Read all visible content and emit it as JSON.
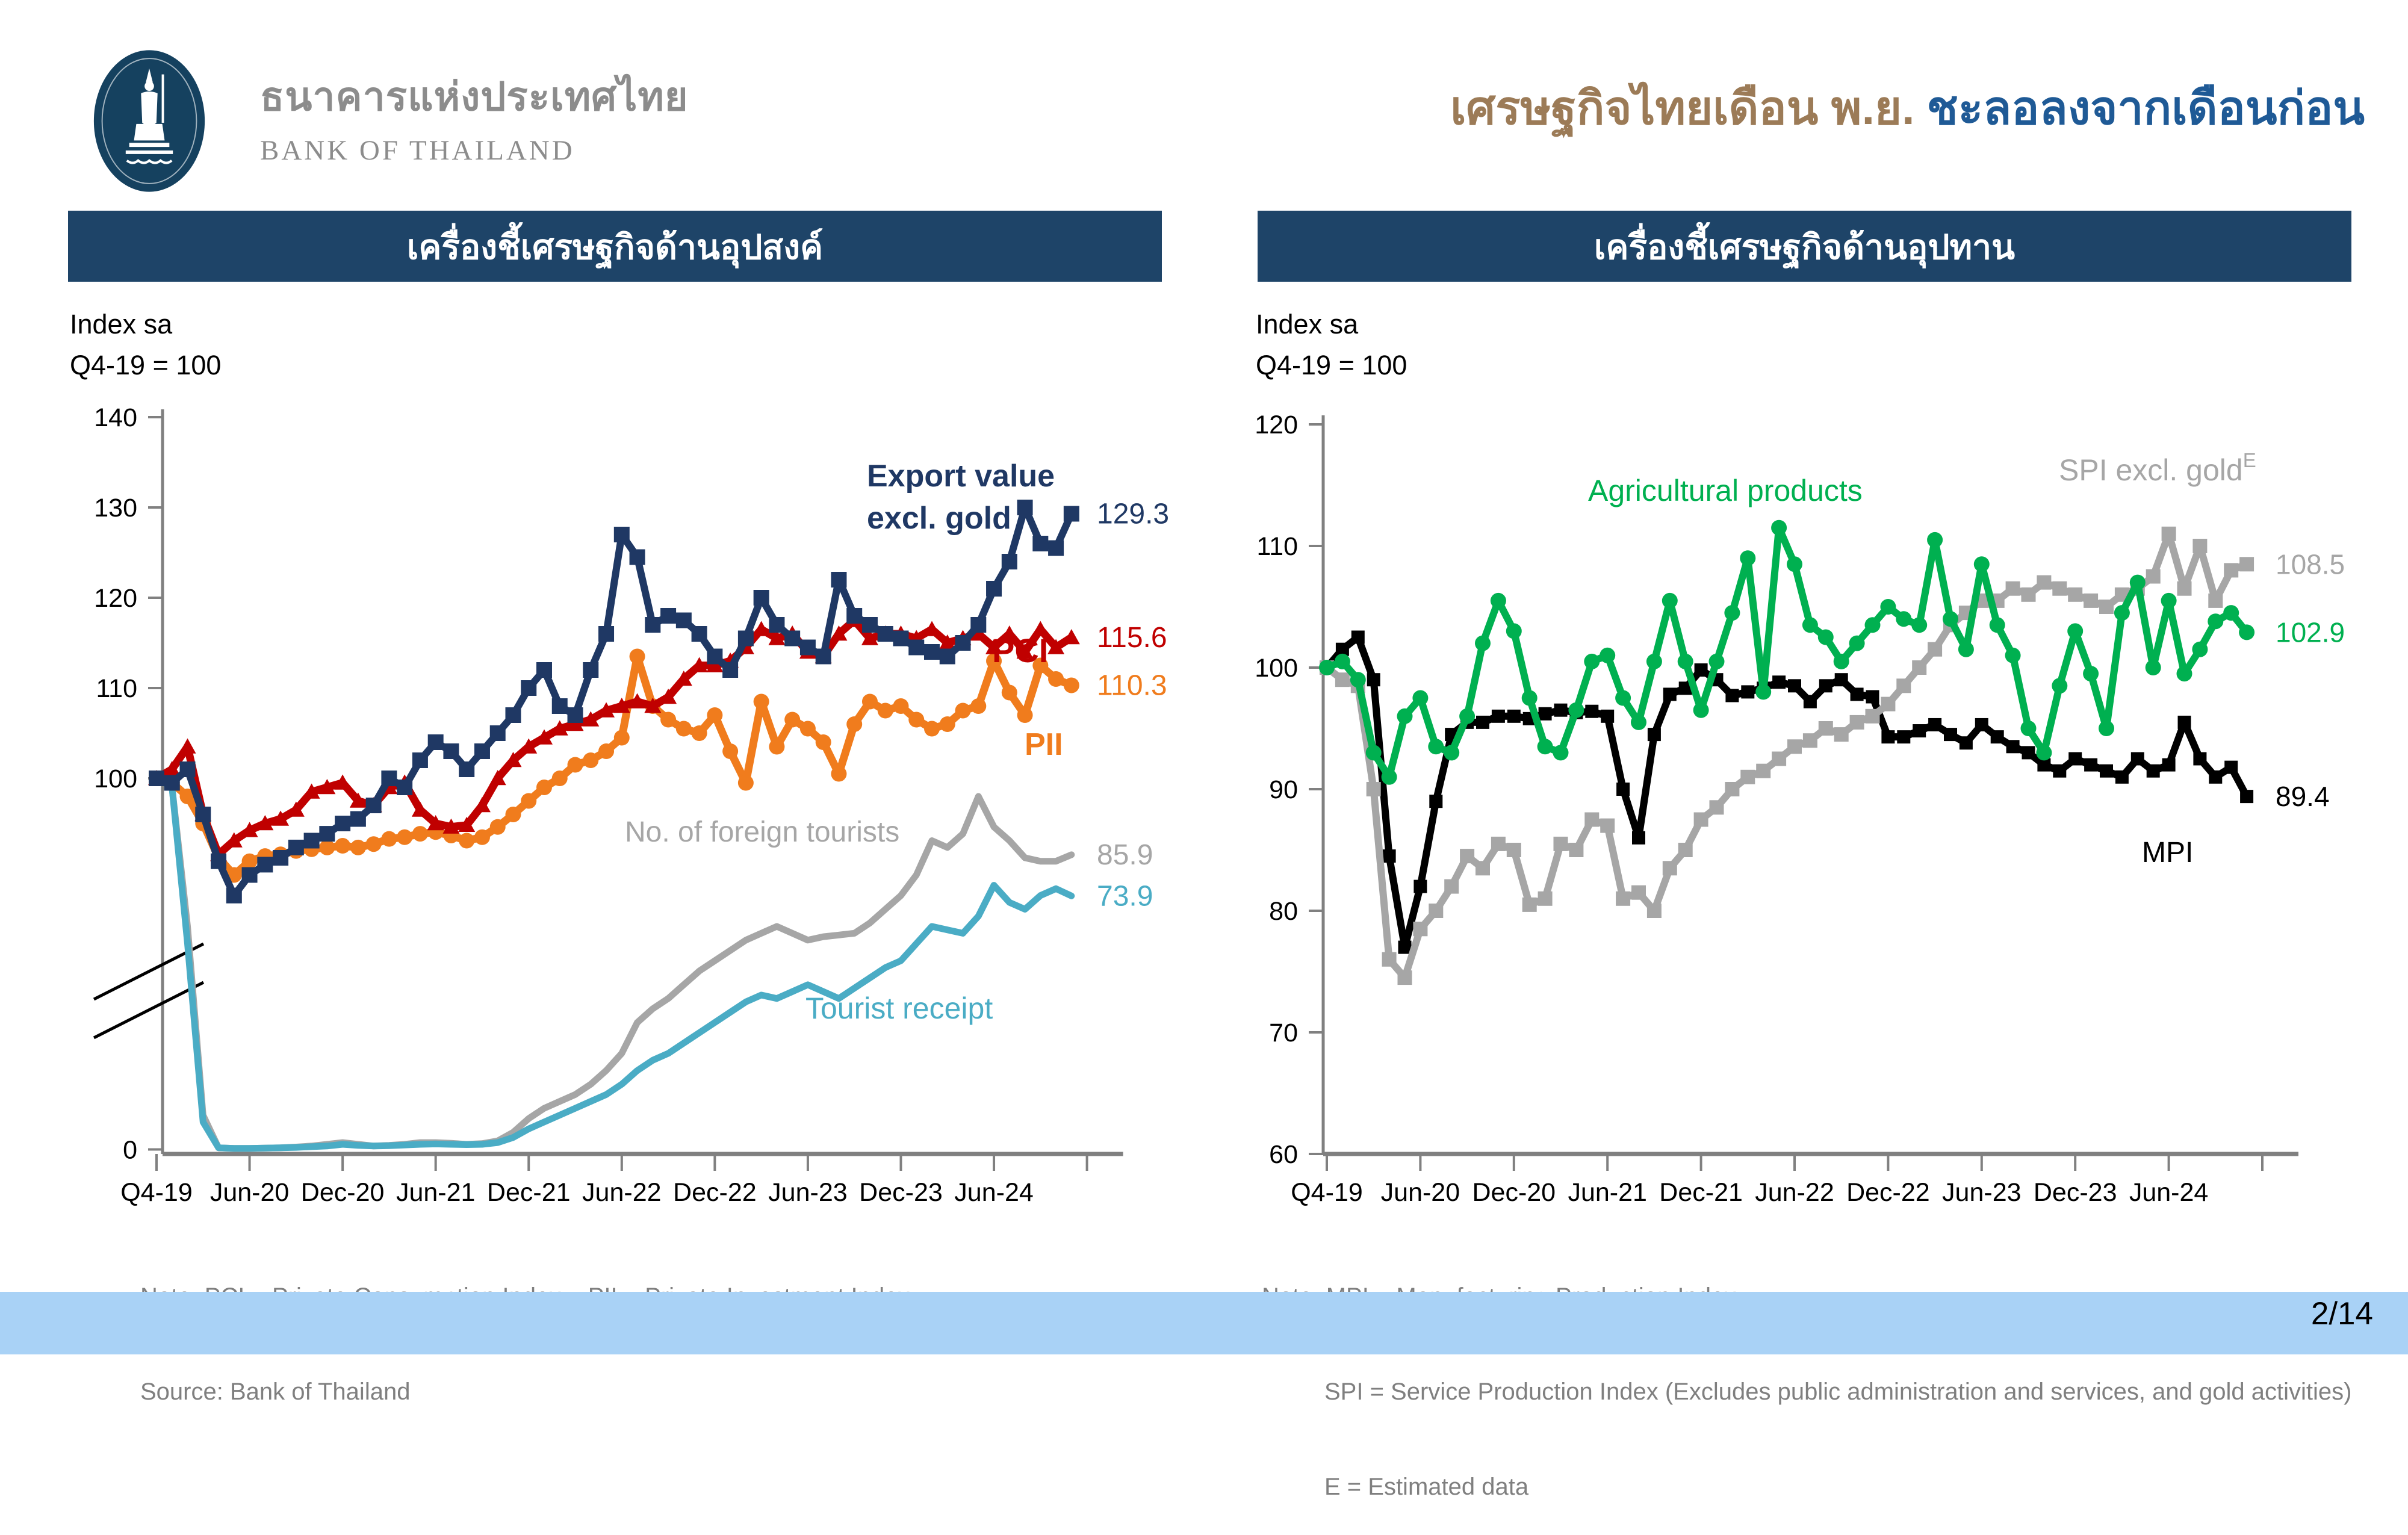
{
  "header": {
    "bank_name_thai": "ธนาคารแห่งประเทศไทย",
    "bank_name_en": "BANK OF THAILAND",
    "title_part1": "เศรษฐกิจไทยเดือน พ.ย.",
    "title_part2": "ชะลอลงจากเดือนก่อน"
  },
  "panels": {
    "left": {
      "header": "เครื่องชี้เศรษฐกิจด้านอุปสงค์",
      "index_label": "Index sa",
      "base_label": "Q4-19 = 100",
      "note_lines": [
        "Note: PCI = Private Consumption Index    PII = Private Investment Index",
        "Source: Bank of Thailand"
      ]
    },
    "right": {
      "header": "เครื่องชี้เศรษฐกิจด้านอุปทาน",
      "index_label": "Index sa",
      "base_label": "Q4-19 = 100",
      "note_lines": [
        "Note: MPI = Manufacturing Production Index",
        "SPI = Service Production Index (Excludes public administration and services, and gold activities)",
        "E = Estimated data"
      ]
    }
  },
  "footer": {
    "page_number": "2/14"
  },
  "chart_data": [
    {
      "type": "line",
      "title": "เครื่องชี้เศรษฐกิจด้านอุปสงค์",
      "ylabel": "Index sa, Q4-19 = 100",
      "x_tick_labels": [
        "Q4-19",
        "Jun-20",
        "Dec-20",
        "Jun-21",
        "Dec-21",
        "Jun-22",
        "Dec-22",
        "Jun-23",
        "Dec-23",
        "Jun-24"
      ],
      "y_ticks": [
        140,
        130,
        120,
        110,
        100,
        0
      ],
      "ylim": [
        0,
        140
      ],
      "y_axis_break": true,
      "x_monthly_points": 60,
      "legend_position": "inline-annotations",
      "series": [
        {
          "name": "Export value excl. gold",
          "name_lines": [
            "Export value",
            "excl. gold"
          ],
          "color": "#1f3864",
          "marker": "square",
          "end_label": "129.3",
          "values": [
            100,
            99.5,
            101,
            96,
            84,
            74,
            80,
            83,
            85,
            88,
            90,
            92,
            95,
            95.5,
            97,
            100,
            99,
            102,
            104,
            103,
            101,
            103,
            105,
            107,
            110,
            112,
            108,
            107,
            112,
            116,
            127,
            124.5,
            117,
            118,
            117.5,
            116,
            113.5,
            112,
            115.5,
            120,
            117,
            115.5,
            114.5,
            113.5,
            122,
            118,
            117,
            116,
            115.5,
            114.5,
            114,
            113.5,
            115,
            117,
            121,
            124,
            130,
            126,
            125.5,
            129.3
          ]
        },
        {
          "name": "PCI",
          "color": "#c00000",
          "marker": "triangle",
          "end_label": "115.6",
          "values": [
            100,
            101,
            103.5,
            96,
            86,
            90,
            93,
            95,
            95.5,
            96.5,
            98.5,
            99,
            99.5,
            97.5,
            97,
            99,
            99.5,
            96.5,
            95,
            94,
            94.5,
            97,
            100,
            102,
            103.5,
            104.5,
            105.5,
            106,
            106.5,
            107.5,
            108,
            108.5,
            108,
            109,
            111,
            112.5,
            112.5,
            113,
            114.5,
            116.5,
            115.5,
            116,
            114,
            113.5,
            116,
            117.5,
            115.5,
            116,
            116,
            115.5,
            116.5,
            115,
            115.5,
            116,
            114.5,
            116,
            114,
            116.5,
            114.5,
            115.6
          ]
        },
        {
          "name": "PII",
          "color": "#f07c1d",
          "marker": "circle",
          "end_label": "110.3",
          "values": [
            100,
            99.5,
            98,
            95,
            85,
            80,
            84,
            85.5,
            86,
            87,
            87.5,
            88,
            88.5,
            88,
            89,
            90.5,
            91,
            92,
            92.5,
            91.5,
            90,
            91,
            94,
            96,
            97.5,
            99,
            100,
            101.5,
            102,
            103,
            104.5,
            113.5,
            108,
            106.5,
            105.5,
            105,
            107,
            103,
            99.5,
            108.5,
            103.5,
            106.5,
            105.5,
            104,
            100.5,
            106,
            108.5,
            107.5,
            108,
            106.5,
            105.5,
            106,
            107.5,
            108,
            113,
            109.5,
            107,
            112.5,
            111,
            110.3
          ]
        },
        {
          "name": "No. of foreign tourists",
          "color": "#a6a6a6",
          "marker": "none",
          "end_label": "85.9",
          "values": [
            100,
            99,
            65,
            10,
            0.5,
            0.3,
            0.3,
            0.4,
            0.5,
            0.7,
            1,
            1.5,
            2,
            1.5,
            1,
            1.2,
            1.5,
            2,
            2,
            1.8,
            1.5,
            1.7,
            2.5,
            5,
            9,
            12,
            14,
            16,
            19,
            23,
            28,
            37,
            41,
            44,
            48,
            52,
            55,
            58,
            61,
            63,
            65,
            63,
            61,
            62,
            62.5,
            63,
            66,
            70,
            74,
            80,
            90,
            88,
            92,
            98,
            94,
            90,
            85,
            84,
            84,
            85.9
          ]
        },
        {
          "name": "Tourist receipt",
          "color": "#4aacc5",
          "marker": "none",
          "end_label": "73.9",
          "values": [
            100,
            99,
            60,
            8,
            0.5,
            0.3,
            0.3,
            0.4,
            0.5,
            0.6,
            0.8,
            1,
            1.5,
            1.2,
            1,
            1.1,
            1.3,
            1.5,
            1.6,
            1.5,
            1.4,
            1.5,
            2,
            3.5,
            6,
            8,
            10,
            12,
            14,
            16,
            19,
            23,
            26,
            28,
            31,
            34,
            37,
            40,
            43,
            45,
            44,
            46,
            48,
            46,
            44,
            47,
            50,
            53,
            55,
            60,
            65,
            64,
            63,
            68,
            77,
            72,
            70,
            74,
            76,
            73.9
          ]
        }
      ]
    },
    {
      "type": "line",
      "title": "เครื่องชี้เศรษฐกิจด้านอุปทาน",
      "ylabel": "Index sa, Q4-19 = 100",
      "x_tick_labels": [
        "Q4-19",
        "Jun-20",
        "Dec-20",
        "Jun-21",
        "Dec-21",
        "Jun-22",
        "Dec-22",
        "Jun-23",
        "Dec-23",
        "Jun-24"
      ],
      "y_ticks": [
        120,
        110,
        100,
        90,
        80,
        70,
        60
      ],
      "ylim": [
        60,
        120
      ],
      "y_axis_break": false,
      "x_monthly_points": 60,
      "legend_position": "inline-annotations",
      "series": [
        {
          "name": "MPI",
          "color": "#000000",
          "marker": "square",
          "end_label": "89.4",
          "values": [
            100,
            101.5,
            102.5,
            99,
            84.5,
            77,
            82,
            89,
            94.5,
            95.5,
            95.5,
            96,
            96,
            95.8,
            96.2,
            96.5,
            96.3,
            96.4,
            96,
            90,
            86,
            94.5,
            97.8,
            98.3,
            99.8,
            99,
            97.7,
            98,
            98.3,
            98.8,
            98.5,
            97.2,
            98.5,
            99,
            97.8,
            97.6,
            94.3,
            94.3,
            94.8,
            95.3,
            94.5,
            93.8,
            95.3,
            94.3,
            93.5,
            93,
            92,
            91.5,
            92.5,
            92,
            91.5,
            91,
            92.5,
            91.5,
            92,
            95.5,
            92.5,
            91,
            91.8,
            89.4
          ]
        },
        {
          "name": "Agricultural products",
          "color": "#00b050",
          "marker": "circle",
          "end_label": "102.9",
          "values": [
            100,
            100.5,
            99,
            93,
            91,
            96,
            97.5,
            93.5,
            93,
            96,
            102,
            105.5,
            103,
            97.5,
            93.5,
            93,
            96.5,
            100.5,
            101,
            97.5,
            95.5,
            100.5,
            105.5,
            100.5,
            96.5,
            100.5,
            104.5,
            109,
            98,
            111.5,
            108.5,
            103.5,
            102.5,
            100.5,
            102,
            103.5,
            105,
            104,
            103.5,
            110.5,
            104,
            101.5,
            108.5,
            103.5,
            101,
            95,
            93,
            98.5,
            103,
            99.5,
            95,
            104.5,
            107,
            100,
            105.5,
            99.5,
            101.5,
            103.8,
            104.5,
            102.9
          ]
        },
        {
          "name": "SPI excl. gold",
          "name_superscript": "E",
          "color": "#a6a6a6",
          "marker": "square",
          "end_label": "108.5",
          "values": [
            100,
            99,
            98.5,
            90,
            76,
            74.5,
            78.5,
            80,
            82,
            84.5,
            83.5,
            85.5,
            85,
            80.5,
            81,
            85.5,
            85,
            87.5,
            87,
            81,
            81.5,
            80,
            83.5,
            85,
            87.5,
            88.5,
            90,
            91,
            91.5,
            92.5,
            93.5,
            94,
            95,
            94.5,
            95.5,
            96,
            97,
            98.5,
            100,
            101.5,
            103.5,
            104.5,
            105.5,
            105.5,
            106.5,
            106,
            107,
            106.5,
            106,
            105.5,
            105,
            106,
            106.5,
            107.5,
            111,
            106.5,
            110,
            105.5,
            108,
            108.5
          ]
        }
      ]
    }
  ]
}
